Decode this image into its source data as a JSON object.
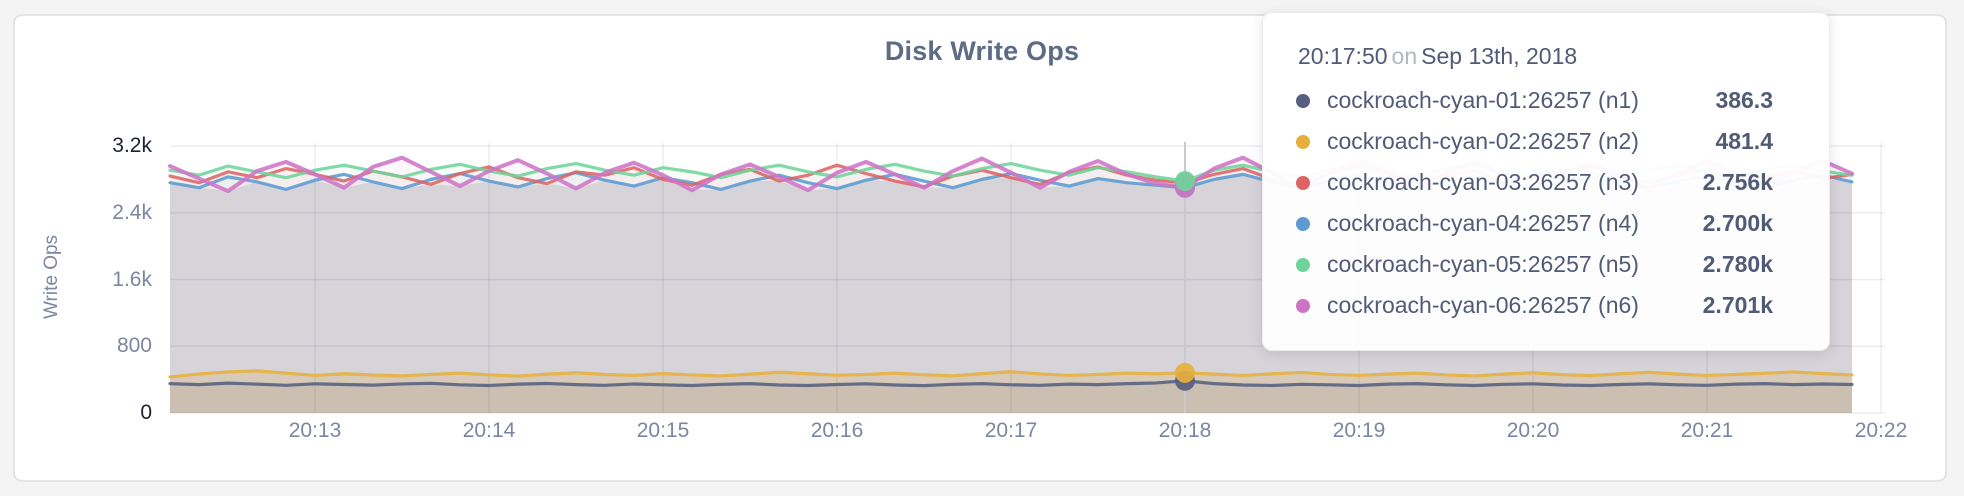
{
  "chart": {
    "title": "Disk Write Ops",
    "y_axis": {
      "label": "Write Ops"
    }
  },
  "tooltip": {
    "time": "20:17:50",
    "conj": "on",
    "date": "Sep 13th, 2018",
    "rows": [
      {
        "name": "cockroach-cyan-01:26257 (n1)",
        "value": "386.3"
      },
      {
        "name": "cockroach-cyan-02:26257 (n2)",
        "value": "481.4"
      },
      {
        "name": "cockroach-cyan-03:26257 (n3)",
        "value": "2.756k"
      },
      {
        "name": "cockroach-cyan-04:26257 (n4)",
        "value": "2.700k"
      },
      {
        "name": "cockroach-cyan-05:26257 (n5)",
        "value": "2.780k"
      },
      {
        "name": "cockroach-cyan-06:26257 (n6)",
        "value": "2.701k"
      }
    ]
  },
  "chart_data": {
    "type": "line",
    "title": "Disk Write Ops",
    "ylabel": "Write Ops",
    "ylim": [
      0,
      3200
    ],
    "grid": true,
    "point_interval_seconds": 10,
    "hover_step": 35,
    "hover_time": "20:17:50",
    "base_fill": "#e4e4e7",
    "y_ticks": [
      {
        "label": "0",
        "value": 0,
        "emphasis": true
      },
      {
        "label": "800",
        "value": 800,
        "emphasis": false
      },
      {
        "label": "1.6k",
        "value": 1600,
        "emphasis": false
      },
      {
        "label": "2.4k",
        "value": 2400,
        "emphasis": false
      },
      {
        "label": "3.2k",
        "value": 3200,
        "emphasis": true
      }
    ],
    "x_ticks": [
      "20:13",
      "20:14",
      "20:15",
      "20:16",
      "20:17",
      "20:18",
      "20:19",
      "20:20",
      "20:21",
      "20:22"
    ],
    "series": [
      {
        "name": "cockroach-cyan-01:26257 (n1)",
        "color": "#556080",
        "hover_value": 386.3,
        "fill_opacity": 0.13,
        "line_width": 3.2,
        "values": [
          352,
          340,
          358,
          346,
          332,
          350,
          342,
          334,
          348,
          356,
          338,
          330,
          346,
          354,
          340,
          332,
          348,
          338,
          330,
          344,
          352,
          336,
          330,
          342,
          350,
          336,
          328,
          344,
          352,
          338,
          332,
          346,
          340,
          352,
          360,
          386.3,
          352,
          336,
          330,
          344,
          338,
          330,
          346,
          352,
          338,
          330,
          344,
          350,
          336,
          330,
          342,
          350,
          338,
          332,
          346,
          352,
          340,
          348,
          342
        ]
      },
      {
        "name": "cockroach-cyan-02:26257 (n2)",
        "color": "#E7B03C",
        "hover_value": 481.4,
        "fill_opacity": 0.22,
        "line_width": 3.2,
        "values": [
          432,
          468,
          492,
          505,
          478,
          450,
          470,
          455,
          445,
          462,
          478,
          458,
          442,
          466,
          482,
          462,
          450,
          472,
          456,
          444,
          466,
          488,
          470,
          452,
          462,
          478,
          458,
          446,
          472,
          494,
          468,
          450,
          462,
          478,
          470,
          481.4,
          466,
          450,
          470,
          486,
          462,
          450,
          466,
          478,
          456,
          444,
          466,
          482,
          460,
          448,
          470,
          488,
          466,
          450,
          462,
          476,
          492,
          472,
          456
        ]
      },
      {
        "name": "cockroach-cyan-03:26257 (n3)",
        "color": "#DD6464",
        "hover_value": 2756,
        "fill_opacity": 0.05,
        "line_width": 3.2,
        "values": [
          2840,
          2760,
          2890,
          2820,
          2930,
          2860,
          2780,
          2900,
          2830,
          2740,
          2870,
          2950,
          2820,
          2750,
          2890,
          2850,
          2940,
          2800,
          2730,
          2860,
          2920,
          2780,
          2850,
          2970,
          2870,
          2780,
          2710,
          2840,
          2910,
          2820,
          2740,
          2880,
          2950,
          2850,
          2790,
          2756,
          2860,
          2930,
          2800,
          2720,
          2870,
          2960,
          2860,
          2770,
          2840,
          2910,
          2760,
          2820,
          2890,
          2960,
          2840,
          2760,
          2850,
          2920,
          2780,
          2830,
          2900,
          2810,
          2860
        ]
      },
      {
        "name": "cockroach-cyan-04:26257 (n4)",
        "color": "#5B9BD1",
        "hover_value": 2700,
        "fill_opacity": 0.05,
        "line_width": 3.2,
        "values": [
          2760,
          2700,
          2830,
          2770,
          2680,
          2790,
          2860,
          2770,
          2690,
          2800,
          2870,
          2780,
          2710,
          2810,
          2880,
          2790,
          2720,
          2820,
          2760,
          2680,
          2780,
          2850,
          2760,
          2690,
          2790,
          2860,
          2780,
          2700,
          2800,
          2870,
          2790,
          2720,
          2810,
          2760,
          2730,
          2700,
          2800,
          2860,
          2770,
          2690,
          2790,
          2850,
          2760,
          2700,
          2780,
          2840,
          2750,
          2680,
          2770,
          2830,
          2740,
          2700,
          2780,
          2840,
          2760,
          2710,
          2790,
          2850,
          2770
        ]
      },
      {
        "name": "cockroach-cyan-05:26257 (n5)",
        "color": "#6FD49B",
        "hover_value": 2780,
        "fill_opacity": 0.05,
        "line_width": 3.2,
        "values": [
          2910,
          2850,
          2960,
          2890,
          2820,
          2910,
          2970,
          2900,
          2830,
          2920,
          2980,
          2900,
          2840,
          2930,
          2990,
          2910,
          2850,
          2940,
          2890,
          2820,
          2910,
          2970,
          2890,
          2830,
          2920,
          2980,
          2900,
          2840,
          2930,
          2990,
          2910,
          2850,
          2940,
          2890,
          2830,
          2780,
          2910,
          2970,
          2890,
          2830,
          2920,
          2980,
          2900,
          2840,
          2930,
          2990,
          2910,
          2850,
          2930,
          2880,
          2820,
          2910,
          2970,
          2890,
          2840,
          2920,
          2980,
          2900,
          2850
        ]
      },
      {
        "name": "cockroach-cyan-06:26257 (n6)",
        "color": "#CE74C6",
        "hover_value": 2701,
        "fill_opacity": 0.05,
        "line_width": 4,
        "values": [
          2960,
          2810,
          2660,
          2900,
          3010,
          2860,
          2700,
          2950,
          3060,
          2890,
          2720,
          2900,
          3030,
          2870,
          2690,
          2880,
          3000,
          2850,
          2670,
          2860,
          2980,
          2830,
          2670,
          2880,
          3010,
          2860,
          2700,
          2900,
          3050,
          2880,
          2700,
          2890,
          3020,
          2860,
          2750,
          2701,
          2930,
          3060,
          2880,
          2690,
          2890,
          3020,
          2870,
          2690,
          2880,
          3000,
          2850,
          2680,
          2870,
          2990,
          2850,
          2680,
          2880,
          3010,
          2860,
          2700,
          2890,
          3020,
          2870
        ]
      }
    ]
  }
}
